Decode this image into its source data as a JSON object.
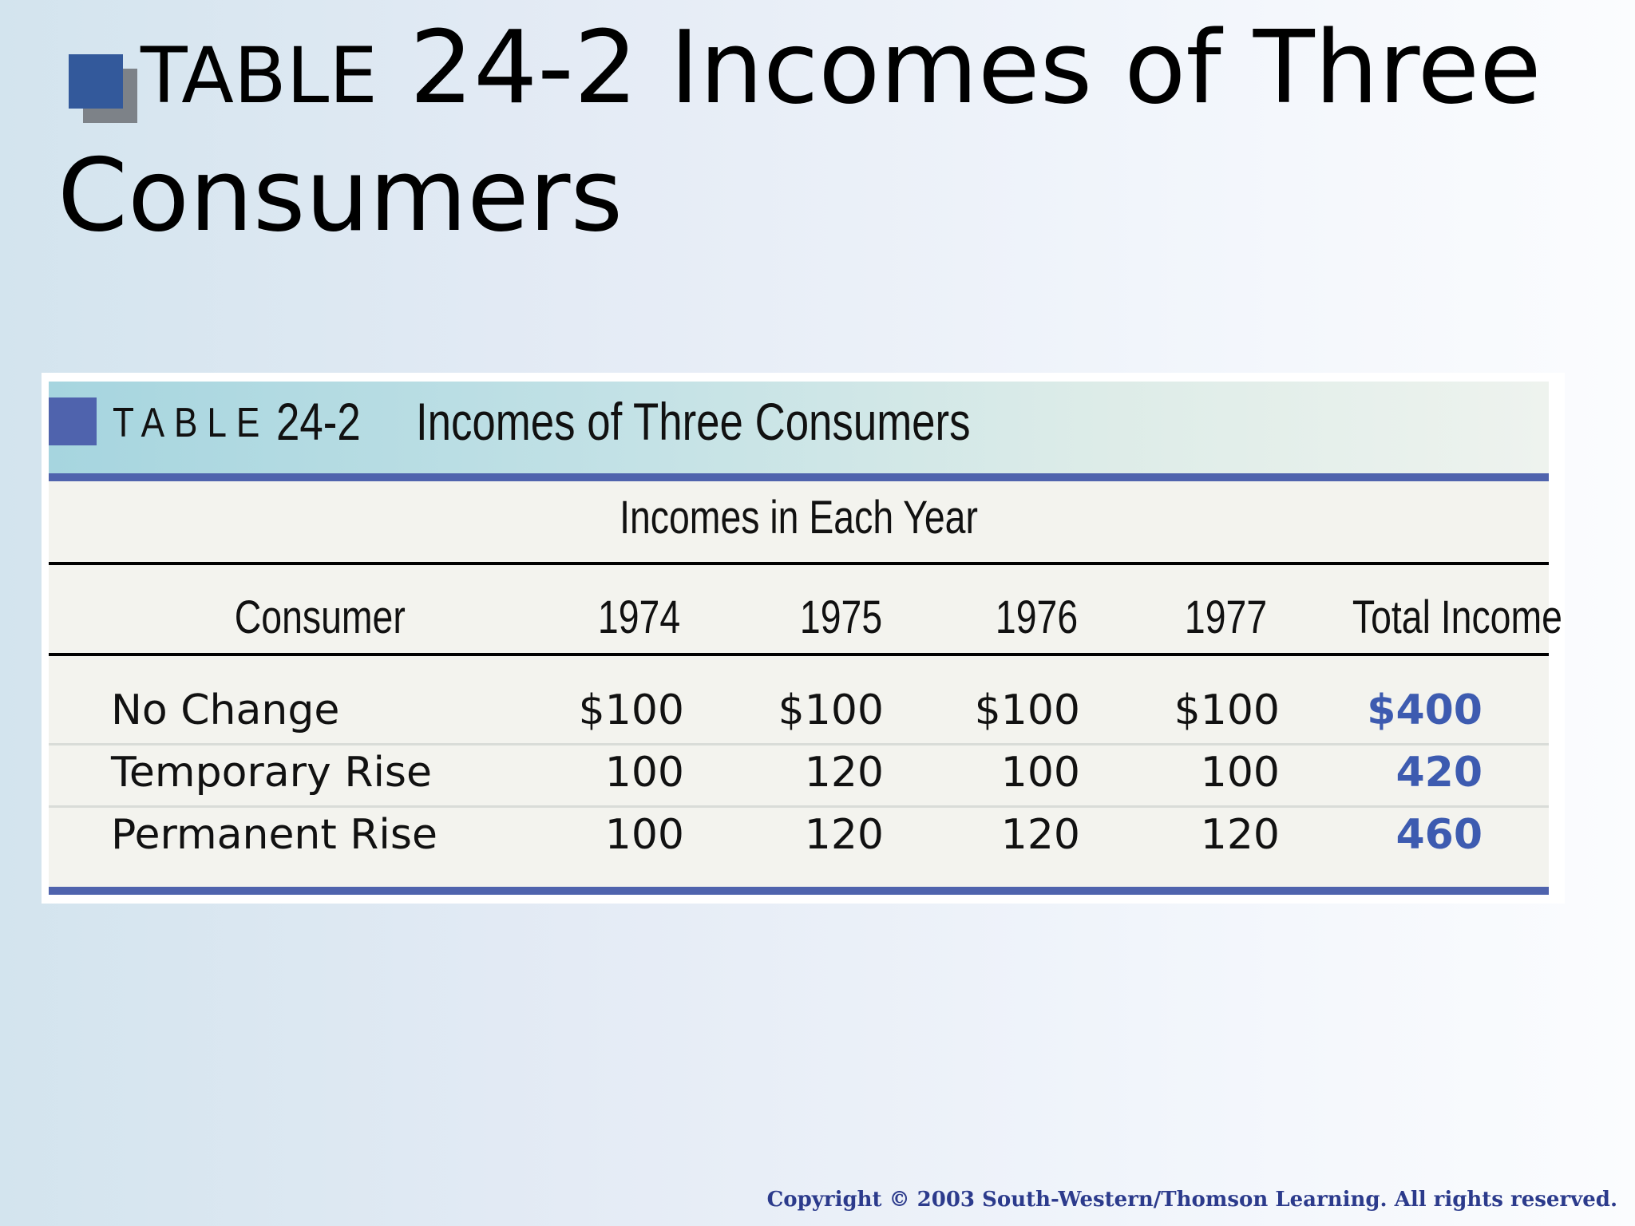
{
  "slide": {
    "title_prefix": "TABLE",
    "title_main": " 24-2 Incomes of Three Consumers",
    "copyright": "Copyright © 2003 South-Western/Thomson Learning. All rights reserved."
  },
  "table": {
    "label": "TABLE",
    "number": "24-2",
    "caption": "Incomes of Three Consumers",
    "group_header": "Incomes in Each Year",
    "columns": [
      "Consumer",
      "1974",
      "1975",
      "1976",
      "1977",
      "Total Income"
    ],
    "rows": [
      {
        "name": "No Change",
        "values": [
          "$100",
          "$100",
          "$100",
          "$100"
        ],
        "total": "$400"
      },
      {
        "name": "Temporary Rise",
        "values": [
          "100",
          "120",
          "100",
          "100"
        ],
        "total": "420"
      },
      {
        "name": "Permanent Rise",
        "values": [
          "100",
          "120",
          "120",
          "120"
        ],
        "total": "460"
      }
    ]
  },
  "colors": {
    "accent_blue": "#4f63ad",
    "total_text": "#3d5bb0",
    "title_bullet": "#33599b"
  },
  "icons": {
    "title_bullet": "square-bullet-icon",
    "caption_marker": "square-marker-icon"
  }
}
